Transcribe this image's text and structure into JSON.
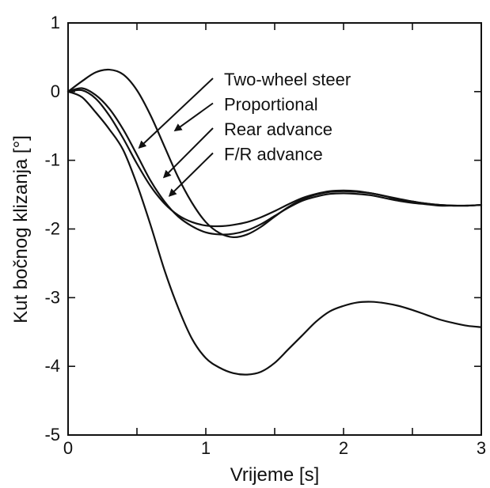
{
  "chart_data": {
    "type": "line",
    "title": "",
    "xlabel": "Vrijeme [s]",
    "ylabel": "Kut bočnog klizanja [°]",
    "xlim": [
      0,
      3
    ],
    "ylim": [
      -5,
      1
    ],
    "grid": false,
    "xticks": [
      {
        "value": 0,
        "label": "0"
      },
      {
        "value": 0.5,
        "label": ""
      },
      {
        "value": 1,
        "label": "1"
      },
      {
        "value": 1.5,
        "label": ""
      },
      {
        "value": 2,
        "label": "2"
      },
      {
        "value": 2.5,
        "label": ""
      },
      {
        "value": 3,
        "label": "3"
      }
    ],
    "yticks": [
      {
        "value": 1,
        "label": "1"
      },
      {
        "value": 0,
        "label": "0"
      },
      {
        "value": -1,
        "label": "-1"
      },
      {
        "value": -2,
        "label": "-2"
      },
      {
        "value": -3,
        "label": "-3"
      },
      {
        "value": -4,
        "label": "-4"
      },
      {
        "value": -5,
        "label": "-5"
      }
    ],
    "series": [
      {
        "name": "Two-wheel steer",
        "x": [
          0,
          0.1,
          0.2,
          0.3,
          0.4,
          0.5,
          0.6,
          0.7,
          0.8,
          0.9,
          1.0,
          1.1,
          1.2,
          1.3,
          1.4,
          1.5,
          1.6,
          1.7,
          1.8,
          1.9,
          2.0,
          2.1,
          2.2,
          2.3,
          2.4,
          2.5,
          2.6,
          2.7,
          2.8,
          2.9,
          3.0
        ],
        "values": [
          0,
          -0.08,
          -0.3,
          -0.55,
          -0.85,
          -1.35,
          -1.95,
          -2.6,
          -3.15,
          -3.6,
          -3.88,
          -4.02,
          -4.1,
          -4.12,
          -4.08,
          -3.95,
          -3.75,
          -3.55,
          -3.35,
          -3.2,
          -3.12,
          -3.07,
          -3.06,
          -3.08,
          -3.12,
          -3.18,
          -3.25,
          -3.32,
          -3.37,
          -3.41,
          -3.43
        ],
        "legend_anchor_x": 0.5,
        "legend_anchor_y": -0.85
      },
      {
        "name": "Proportional",
        "x": [
          0,
          0.1,
          0.2,
          0.3,
          0.4,
          0.5,
          0.6,
          0.7,
          0.8,
          0.9,
          1.0,
          1.1,
          1.2,
          1.3,
          1.4,
          1.5,
          1.6,
          1.7,
          1.8,
          1.9,
          2.0,
          2.1,
          2.2,
          2.3,
          2.4,
          2.5,
          2.6,
          2.7,
          2.8,
          2.9,
          3.0
        ],
        "values": [
          0,
          0.15,
          0.28,
          0.32,
          0.25,
          0.02,
          -0.35,
          -0.8,
          -1.25,
          -1.62,
          -1.9,
          -2.06,
          -2.12,
          -2.08,
          -1.97,
          -1.82,
          -1.68,
          -1.57,
          -1.5,
          -1.46,
          -1.45,
          -1.46,
          -1.48,
          -1.52,
          -1.56,
          -1.6,
          -1.63,
          -1.65,
          -1.66,
          -1.66,
          -1.65
        ],
        "legend_anchor_x": 0.76,
        "legend_anchor_y": -0.6
      },
      {
        "name": "Rear advance",
        "x": [
          0,
          0.1,
          0.2,
          0.3,
          0.4,
          0.5,
          0.6,
          0.7,
          0.8,
          0.9,
          1.0,
          1.1,
          1.2,
          1.3,
          1.4,
          1.5,
          1.6,
          1.7,
          1.8,
          1.9,
          2.0,
          2.1,
          2.2,
          2.3,
          2.4,
          2.5,
          2.6,
          2.7,
          2.8,
          2.9,
          3.0
        ],
        "values": [
          0,
          0.02,
          -0.1,
          -0.35,
          -0.68,
          -1.05,
          -1.38,
          -1.63,
          -1.8,
          -1.9,
          -1.95,
          -1.96,
          -1.94,
          -1.9,
          -1.83,
          -1.74,
          -1.64,
          -1.55,
          -1.49,
          -1.45,
          -1.44,
          -1.45,
          -1.48,
          -1.52,
          -1.57,
          -1.6,
          -1.63,
          -1.65,
          -1.66,
          -1.66,
          -1.65
        ],
        "legend_anchor_x": 0.68,
        "legend_anchor_y": -1.28
      },
      {
        "name": "F/R advance",
        "x": [
          0,
          0.1,
          0.2,
          0.3,
          0.4,
          0.5,
          0.6,
          0.7,
          0.8,
          0.9,
          1.0,
          1.1,
          1.2,
          1.3,
          1.4,
          1.5,
          1.6,
          1.7,
          1.8,
          1.9,
          2.0,
          2.1,
          2.2,
          2.3,
          2.4,
          2.5,
          2.6,
          2.7,
          2.8,
          2.9,
          3.0
        ],
        "values": [
          0,
          0.05,
          -0.05,
          -0.25,
          -0.55,
          -0.92,
          -1.3,
          -1.6,
          -1.82,
          -1.96,
          -2.05,
          -2.08,
          -2.07,
          -2.02,
          -1.93,
          -1.81,
          -1.69,
          -1.59,
          -1.53,
          -1.49,
          -1.48,
          -1.49,
          -1.51,
          -1.55,
          -1.59,
          -1.62,
          -1.64,
          -1.66,
          -1.66,
          -1.66,
          -1.65
        ],
        "legend_anchor_x": 0.72,
        "legend_anchor_y": -1.55
      }
    ]
  }
}
